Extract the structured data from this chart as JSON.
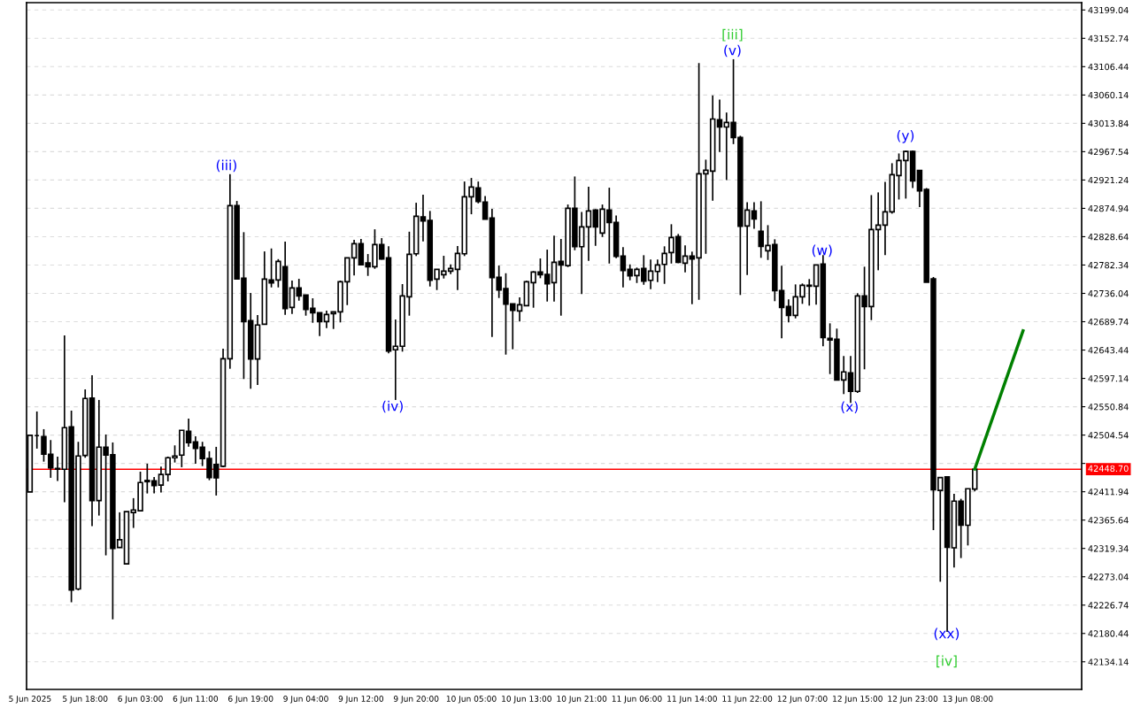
{
  "chart_data": {
    "type": "candlestick",
    "categories": [
      "5 Jun 2025",
      null,
      null,
      null,
      null,
      null,
      null,
      null,
      "5 Jun 18:00",
      null,
      null,
      null,
      null,
      null,
      null,
      null,
      "6 Jun 03:00",
      null,
      null,
      null,
      null,
      null,
      null,
      null,
      "6 Jun 11:00",
      null,
      null,
      null,
      null,
      null,
      null,
      null,
      "6 Jun 19:00",
      null,
      null,
      null,
      null,
      null,
      null,
      null,
      "9 Jun 04:00",
      null,
      null,
      null,
      null,
      null,
      null,
      null,
      "9 Jun 12:00",
      null,
      null,
      null,
      null,
      null,
      null,
      null,
      "9 Jun 20:00",
      null,
      null,
      null,
      null,
      null,
      null,
      null,
      "10 Jun 05:00",
      null,
      null,
      null,
      null,
      null,
      null,
      null,
      "10 Jun 13:00",
      null,
      null,
      null,
      null,
      null,
      null,
      null,
      "10 Jun 21:00",
      null,
      null,
      null,
      null,
      null,
      null,
      null,
      "11 Jun 06:00",
      null,
      null,
      null,
      null,
      null,
      null,
      null,
      "11 Jun 14:00",
      null,
      null,
      null,
      null,
      null,
      null,
      null,
      "11 Jun 22:00",
      null,
      null,
      null,
      null,
      null,
      null,
      null,
      "12 Jun 07:00",
      null,
      null,
      null,
      null,
      null,
      null,
      null,
      "12 Jun 15:00",
      null,
      null,
      null,
      null,
      null,
      null,
      null,
      "12 Jun 23:00",
      null,
      null,
      null,
      null,
      null,
      null,
      null,
      "13 Jun 08:00",
      null,
      null,
      null,
      null,
      null,
      null,
      null,
      null,
      null,
      null,
      null,
      null,
      null,
      null,
      null,
      null
    ],
    "ohlc": [
      [
        42411.6,
        42504.1,
        42411.6,
        42504.1
      ],
      [
        42503.6,
        42543.1,
        42482.4,
        42503.6
      ],
      [
        42502.2,
        42514.2,
        42461.1,
        42473.3
      ],
      [
        42473.3,
        42496.4,
        42434.7,
        42451.0
      ],
      [
        42450.0,
        42469.4,
        42429.4,
        42449.0
      ],
      [
        42448.7,
        42667.3,
        42394.7,
        42516.6
      ],
      [
        42518.1,
        42544.5,
        42231.4,
        42251.6
      ],
      [
        42253.1,
        42493.5,
        42250.8,
        42470.4
      ],
      [
        42471.3,
        42579.2,
        42467.5,
        42564.3
      ],
      [
        42564.8,
        42602.3,
        42355.7,
        42397.6
      ],
      [
        42397.6,
        42561.9,
        42373.0,
        42484.8
      ],
      [
        42484.8,
        42505.5,
        42308.0,
        42471.8
      ],
      [
        42472.3,
        42492.5,
        42203.5,
        42319.5
      ],
      [
        42321.0,
        42378.3,
        42320.1,
        42333.5
      ],
      [
        42294.1,
        42379.4,
        42294.1,
        42379.4
      ],
      [
        42377.9,
        42401.5,
        42352.8,
        42382.2
      ],
      [
        42380.8,
        42444.8,
        42380.8,
        42427.0
      ],
      [
        42430.4,
        42457.8,
        42409.1,
        42428.4
      ],
      [
        42429.9,
        42436.1,
        42409.1,
        42422.1
      ],
      [
        42422.7,
        42453.1,
        42410.6,
        42440.1
      ],
      [
        42440.1,
        42469.4,
        42428.9,
        42467.5
      ],
      [
        42467.5,
        42487.7,
        42459.7,
        42470.4
      ],
      [
        42471.8,
        42512.3,
        42452.0,
        42512.3
      ],
      [
        42510.8,
        42531.5,
        42485.7,
        42492.1
      ],
      [
        42493.5,
        42502.6,
        42457.8,
        42482.8
      ],
      [
        42484.8,
        42493.5,
        42453.9,
        42466.1
      ],
      [
        42466.1,
        42478.1,
        42430.8,
        42435.1
      ],
      [
        42456.4,
        42485.3,
        42405.8,
        42434.7
      ],
      [
        42453.5,
        42645.7,
        42452.0,
        42629.3
      ],
      [
        42629.3,
        42930.8,
        42612.9,
        42879.3
      ],
      [
        42879.3,
        42887.0,
        42759.8,
        42759.8
      ],
      [
        42760.8,
        42836.0,
        42596.1,
        42690.0
      ],
      [
        42691.5,
        42736.7,
        42580.2,
        42628.8
      ],
      [
        42628.8,
        42700.6,
        42586.4,
        42684.3
      ],
      [
        42685.7,
        42804.6,
        42685.7,
        42759.4
      ],
      [
        42757.9,
        42809.4,
        42745.8,
        42753.0
      ],
      [
        42757.9,
        42792.0,
        42745.8,
        42788.3
      ],
      [
        42779.6,
        42820.5,
        42701.0,
        42711.1
      ],
      [
        42713.1,
        42756.9,
        42702.5,
        42745.0
      ],
      [
        42745.0,
        42759.8,
        42724.1,
        42731.9
      ],
      [
        42733.4,
        42733.4,
        42699.6,
        42709.7
      ],
      [
        42711.7,
        42728.0,
        42688.0,
        42704.5
      ],
      [
        42704.5,
        42704.5,
        42666.3,
        42690.0
      ],
      [
        42690.0,
        42707.8,
        42679.3,
        42701.6
      ],
      [
        42703.0,
        42705.9,
        42677.9,
        42705.9
      ],
      [
        42705.9,
        42756.9,
        42688.6,
        42755.0
      ],
      [
        42755.0,
        42794.1,
        42716.9,
        42794.1
      ],
      [
        42794.1,
        42823.4,
        42765.2,
        42817.2
      ],
      [
        42817.2,
        42824.9,
        42782.9,
        42782.9
      ],
      [
        42785.8,
        42800.3,
        42764.6,
        42779.6
      ],
      [
        42779.6,
        42840.7,
        42776.2,
        42815.7
      ],
      [
        42815.7,
        42826.3,
        42791.2,
        42792.0
      ],
      [
        42794.1,
        42812.9,
        42638.0,
        42641.8
      ],
      [
        42643.8,
        42693.4,
        42561.9,
        42649.6
      ],
      [
        42649.6,
        42751.2,
        42640.9,
        42731.9
      ],
      [
        42730.5,
        42836.8,
        42699.6,
        42799.8
      ],
      [
        42800.7,
        42884.1,
        42797.0,
        42862.0
      ],
      [
        42861.0,
        42897.1,
        42820.9,
        42854.2
      ],
      [
        42855.2,
        42870.7,
        42747.3,
        42757.4
      ],
      [
        42759.4,
        42775.3,
        42741.5,
        42775.3
      ],
      [
        42766.6,
        42797.4,
        42760.3,
        42772.4
      ],
      [
        42772.4,
        42783.4,
        42767.5,
        42776.7
      ],
      [
        42775.3,
        42813.3,
        42741.5,
        42801.3
      ],
      [
        42800.7,
        42918.8,
        42797.0,
        42893.8
      ],
      [
        42893.8,
        42924.6,
        42865.3,
        42909.7
      ],
      [
        42908.2,
        42918.8,
        42883.1,
        42886.0
      ],
      [
        42885.1,
        42895.2,
        42857.1,
        42857.1
      ],
      [
        42859.1,
        42874.0,
        42664.9,
        42761.7
      ],
      [
        42762.3,
        42781.5,
        42728.5,
        42741.5
      ],
      [
        42743.9,
        42768.9,
        42636.0,
        42718.4
      ],
      [
        42718.9,
        42718.9,
        42644.7,
        42708.2
      ],
      [
        42707.4,
        42729.5,
        42690.0,
        42717.5
      ],
      [
        42716.0,
        42756.5,
        42716.0,
        42755.0
      ],
      [
        42753.6,
        42772.4,
        42712.6,
        42770.9
      ],
      [
        42770.9,
        42793.1,
        42760.8,
        42766.6
      ],
      [
        42767.1,
        42807.5,
        42722.7,
        42751.6
      ],
      [
        42753.6,
        42830.2,
        42722.7,
        42786.8
      ],
      [
        42788.3,
        42824.9,
        42699.6,
        42782.5
      ],
      [
        42781.5,
        42881.2,
        42779.0,
        42875.0
      ],
      [
        42875.0,
        42927.0,
        42806.5,
        42812.3
      ],
      [
        42812.3,
        42869.2,
        42734.8,
        42844.6
      ],
      [
        42844.6,
        42910.1,
        42789.2,
        42870.7
      ],
      [
        42872.1,
        42873.5,
        42813.7,
        42844.6
      ],
      [
        42834.5,
        42881.2,
        42828.2,
        42873.5
      ],
      [
        42872.1,
        42908.7,
        42784.8,
        42851.9
      ],
      [
        42851.9,
        42863.4,
        42793.5,
        42796.4
      ],
      [
        42797.0,
        42811.4,
        42745.8,
        42773.3
      ],
      [
        42775.3,
        42783.4,
        42757.4,
        42764.6
      ],
      [
        42765.2,
        42778.2,
        42753.0,
        42775.3
      ],
      [
        42776.7,
        42798.4,
        42750.1,
        42755.9
      ],
      [
        42757.4,
        42791.2,
        42742.9,
        42772.4
      ],
      [
        42771.8,
        42791.2,
        42754.5,
        42782.5
      ],
      [
        42783.4,
        42812.9,
        42751.6,
        42801.3
      ],
      [
        42802.7,
        42849.0,
        42784.8,
        42827.3
      ],
      [
        42828.8,
        42833.1,
        42785.4,
        42786.8
      ],
      [
        42785.4,
        42814.3,
        42770.4,
        42797.0
      ],
      [
        42797.0,
        42804.2,
        42718.4,
        42792.0
      ],
      [
        42794.1,
        43112.4,
        42725.6,
        42931.3
      ],
      [
        42931.3,
        42954.5,
        42800.7,
        42937.1
      ],
      [
        42935.7,
        43059.4,
        42887.4,
        43020.9
      ],
      [
        43019.5,
        43052.7,
        42966.9,
        43007.9
      ],
      [
        43007.9,
        43031.5,
        42921.2,
        43015.2
      ],
      [
        43015.2,
        43118.6,
        42979.9,
        42990.6
      ],
      [
        42990.6,
        42993.5,
        42733.4,
        42845.5
      ],
      [
        42846.1,
        42885.1,
        42766.0,
        42872.1
      ],
      [
        42870.7,
        42885.1,
        42841.7,
        42857.6
      ],
      [
        42837.4,
        42886.5,
        42794.1,
        42812.9
      ],
      [
        42805.6,
        42847.5,
        42790.6,
        42814.3
      ],
      [
        42815.7,
        42824.4,
        42723.3,
        42740.6
      ],
      [
        42740.6,
        42781.1,
        42662.6,
        42713.1
      ],
      [
        42714.6,
        42726.1,
        42688.6,
        42700.1
      ],
      [
        42700.1,
        42750.7,
        42695.2,
        42730.5
      ],
      [
        42730.5,
        42752.2,
        42718.9,
        42749.3
      ],
      [
        42749.3,
        42759.4,
        42716.0,
        42747.8
      ],
      [
        42747.8,
        42782.5,
        42717.5,
        42782.5
      ],
      [
        42784.0,
        42798.4,
        42649.6,
        42664.0
      ],
      [
        42662.6,
        42687.1,
        42604.2,
        42659.7
      ],
      [
        42661.1,
        42678.5,
        42594.6,
        42594.6
      ],
      [
        42594.6,
        42633.7,
        42571.5,
        42607.7
      ],
      [
        42606.2,
        42633.7,
        42557.1,
        42575.9
      ],
      [
        42575.9,
        42736.3,
        42573.4,
        42731.9
      ],
      [
        42731.9,
        42779.6,
        42612.0,
        42714.6
      ],
      [
        42714.6,
        42896.6,
        42692.3,
        42840.3
      ],
      [
        42840.3,
        42901.0,
        42773.8,
        42847.5
      ],
      [
        42847.5,
        42918.3,
        42798.4,
        42869.2
      ],
      [
        42869.2,
        42948.7,
        42866.3,
        42929.9
      ],
      [
        42928.4,
        42964.6,
        42889.4,
        42953.0
      ],
      [
        42953.0,
        42969.4,
        42890.9,
        42967.9
      ],
      [
        42967.9,
        42969.4,
        42908.2,
        42919.8
      ],
      [
        42936.8,
        42936.8,
        42877.0,
        42903.6
      ],
      [
        42905.8,
        42908.1,
        42754.3,
        42754.3
      ],
      [
        42759.8,
        42762.6,
        42349.4,
        42415.3
      ],
      [
        42414.2,
        42435.1,
        42264.9,
        42435.1
      ],
      [
        42436.3,
        42436.3,
        42183.0,
        42321.3
      ],
      [
        42320.3,
        42408.7,
        42288.0,
        42396.6
      ],
      [
        42396.6,
        42400.4,
        42303.6,
        42357.2
      ],
      [
        42357.2,
        42416.9,
        42324.2,
        42416.9
      ],
      [
        42416.3,
        42448.7,
        42412.6,
        42448.7
      ],
      null,
      null,
      null,
      null,
      null,
      null,
      null,
      null,
      null,
      null,
      null,
      null,
      null,
      null,
      null
    ],
    "series": [
      {
        "type": "line",
        "color": "#008000",
        "values": [
          null,
          null,
          null,
          null,
          null,
          null,
          null,
          null,
          null,
          null,
          null,
          null,
          null,
          null,
          null,
          null,
          null,
          null,
          null,
          null,
          null,
          null,
          null,
          null,
          null,
          null,
          null,
          null,
          null,
          null,
          null,
          null,
          null,
          null,
          null,
          null,
          null,
          null,
          null,
          null,
          null,
          null,
          null,
          null,
          null,
          null,
          null,
          null,
          null,
          null,
          null,
          null,
          null,
          null,
          null,
          null,
          null,
          null,
          null,
          null,
          null,
          null,
          null,
          null,
          null,
          null,
          null,
          null,
          null,
          null,
          null,
          null,
          null,
          null,
          null,
          null,
          null,
          null,
          null,
          null,
          null,
          null,
          null,
          null,
          null,
          null,
          null,
          null,
          null,
          null,
          null,
          null,
          null,
          null,
          null,
          null,
          null,
          null,
          null,
          null,
          null,
          null,
          null,
          null,
          null,
          null,
          null,
          null,
          null,
          null,
          null,
          null,
          null,
          null,
          null,
          null,
          null,
          null,
          null,
          null,
          null,
          null,
          null,
          null,
          null,
          null,
          null,
          null,
          null,
          null,
          null,
          null,
          null,
          null,
          null,
          null,
          null,
          42449,
          null,
          null,
          null,
          null,
          null,
          null,
          42675,
          null,
          null,
          null,
          null,
          null,
          null,
          null,
          null
        ]
      }
    ],
    "ref_lines": [
      {
        "axis": "y",
        "value": 42448.7,
        "label": "42448.70",
        "color": "#ff0000"
      }
    ],
    "annotations": [
      "(iii)",
      "(iv)",
      "[iii]",
      "(v)",
      "(w)",
      "(x)",
      "(y)",
      "(xx)",
      "[iv]"
    ],
    "ylim": [
      42089,
      43211
    ],
    "yticks": [
      42134.14,
      42180.44,
      42226.74,
      42273.04,
      42319.34,
      42365.64,
      42411.94,
      {
        "value": 42458.24,
        "label": null
      },
      42504.54,
      42550.84,
      42597.14,
      42643.44,
      42689.74,
      42736.04,
      42782.34,
      42828.64,
      42874.94,
      42921.24,
      42967.54,
      43013.84,
      43060.14,
      43106.44,
      43152.74,
      43199.04
    ],
    "grid": true
  }
}
